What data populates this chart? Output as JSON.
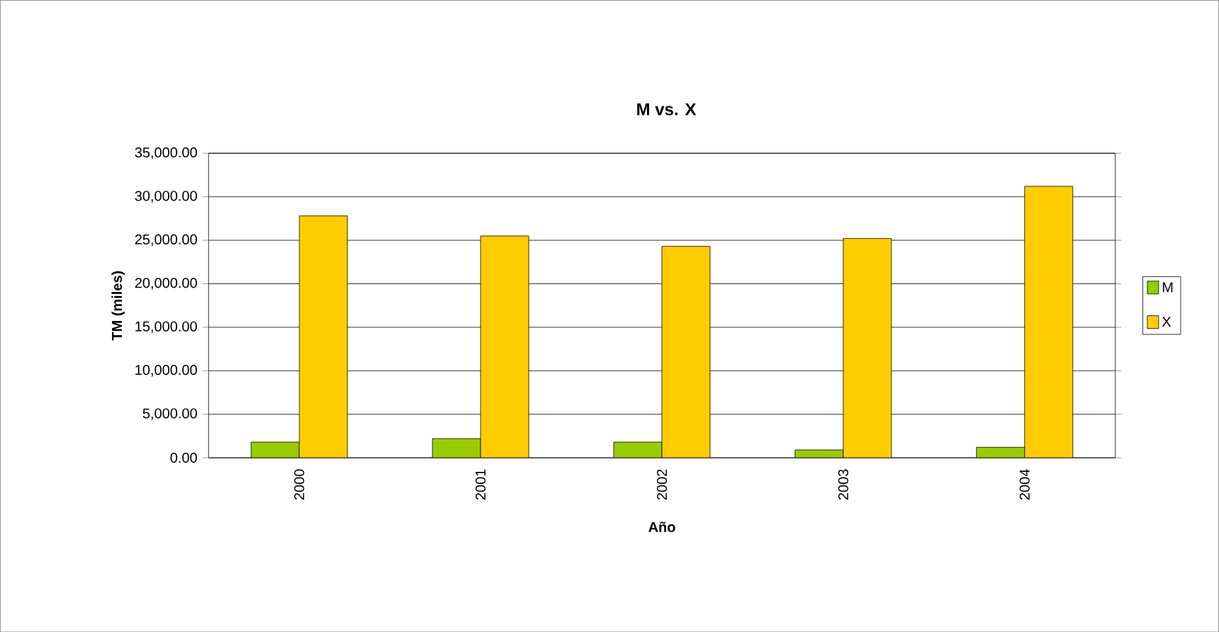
{
  "chart_data": {
    "type": "bar",
    "title": "M vs. X",
    "xlabel": "Año",
    "ylabel": "TM (miles)",
    "categories": [
      "2000",
      "2001",
      "2002",
      "2003",
      "2004"
    ],
    "series": [
      {
        "name": "M",
        "color": "#99cc00",
        "values": [
          1800,
          2200,
          1800,
          900,
          1200
        ]
      },
      {
        "name": "X",
        "color": "#ffcc00",
        "values": [
          27800,
          25500,
          24300,
          25200,
          31200
        ]
      }
    ],
    "ylim": [
      0,
      35000
    ],
    "yticks": [
      {
        "value": 0,
        "label": "0.00"
      },
      {
        "value": 5000,
        "label": "5,000.00"
      },
      {
        "value": 10000,
        "label": "10,000.00"
      },
      {
        "value": 15000,
        "label": "15,000.00"
      },
      {
        "value": 20000,
        "label": "20,000.00"
      },
      {
        "value": 25000,
        "label": "25,000.00"
      },
      {
        "value": 30000,
        "label": "30,000.00"
      },
      {
        "value": 35000,
        "label": "35,000.00"
      }
    ],
    "grid": "y",
    "legend": "right"
  }
}
